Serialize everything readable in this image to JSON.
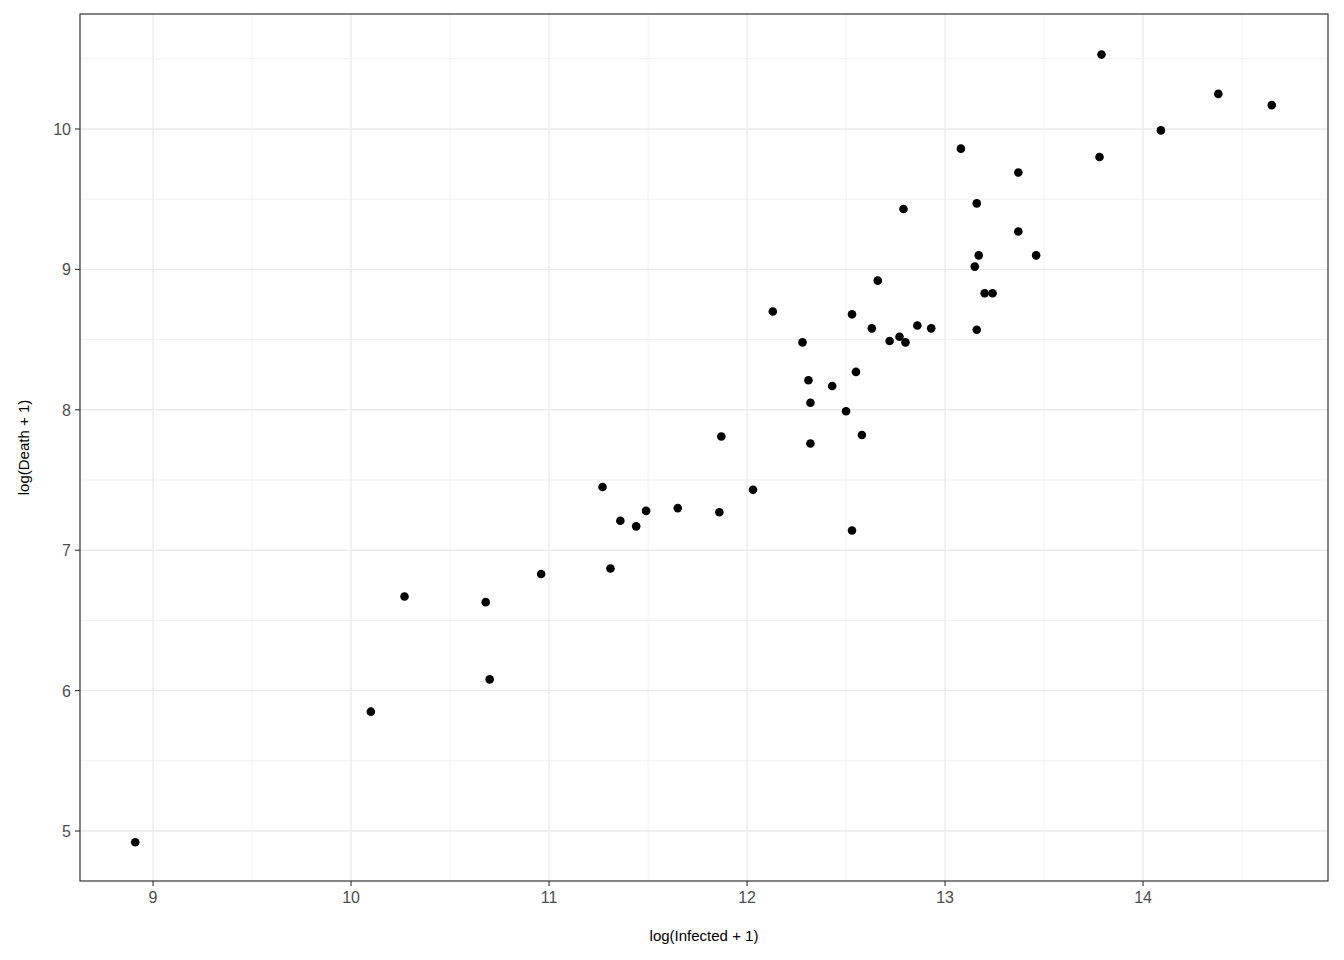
{
  "chart_data": {
    "type": "scatter",
    "x_label": "log(Infected + 1)",
    "y_label": "log(Death + 1)",
    "x": [
      8.91,
      10.1,
      10.27,
      10.68,
      10.7,
      10.96,
      11.27,
      11.31,
      11.36,
      11.44,
      11.49,
      11.65,
      11.86,
      11.87,
      12.03,
      12.13,
      12.28,
      12.31,
      12.32,
      12.32,
      12.43,
      12.5,
      12.53,
      12.53,
      12.55,
      12.58,
      12.63,
      12.66,
      12.72,
      12.77,
      12.79,
      12.8,
      12.86,
      12.93,
      13.08,
      13.15,
      13.16,
      13.16,
      13.17,
      13.2,
      13.24,
      13.37,
      13.37,
      13.46,
      13.78,
      13.79,
      14.09,
      14.38,
      14.65
    ],
    "values": [
      4.92,
      5.85,
      6.67,
      6.63,
      6.08,
      6.83,
      7.45,
      6.87,
      7.21,
      7.17,
      7.28,
      7.3,
      7.27,
      7.81,
      7.43,
      8.7,
      8.48,
      8.21,
      8.05,
      7.76,
      8.17,
      7.99,
      7.14,
      8.68,
      8.27,
      7.82,
      8.58,
      8.92,
      8.49,
      8.52,
      9.43,
      8.48,
      8.6,
      8.58,
      9.86,
      9.02,
      9.47,
      8.57,
      9.1,
      8.83,
      8.83,
      9.27,
      9.69,
      9.1,
      9.8,
      10.53,
      9.99,
      10.25,
      10.17
    ],
    "color": "#000000",
    "xlim": [
      8.631,
      14.934
    ],
    "ylim": [
      4.644,
      10.819
    ],
    "xticks": [
      9,
      10,
      11,
      12,
      13,
      14
    ],
    "yticks": [
      5,
      6,
      7,
      8,
      9,
      10
    ],
    "grid": true
  }
}
